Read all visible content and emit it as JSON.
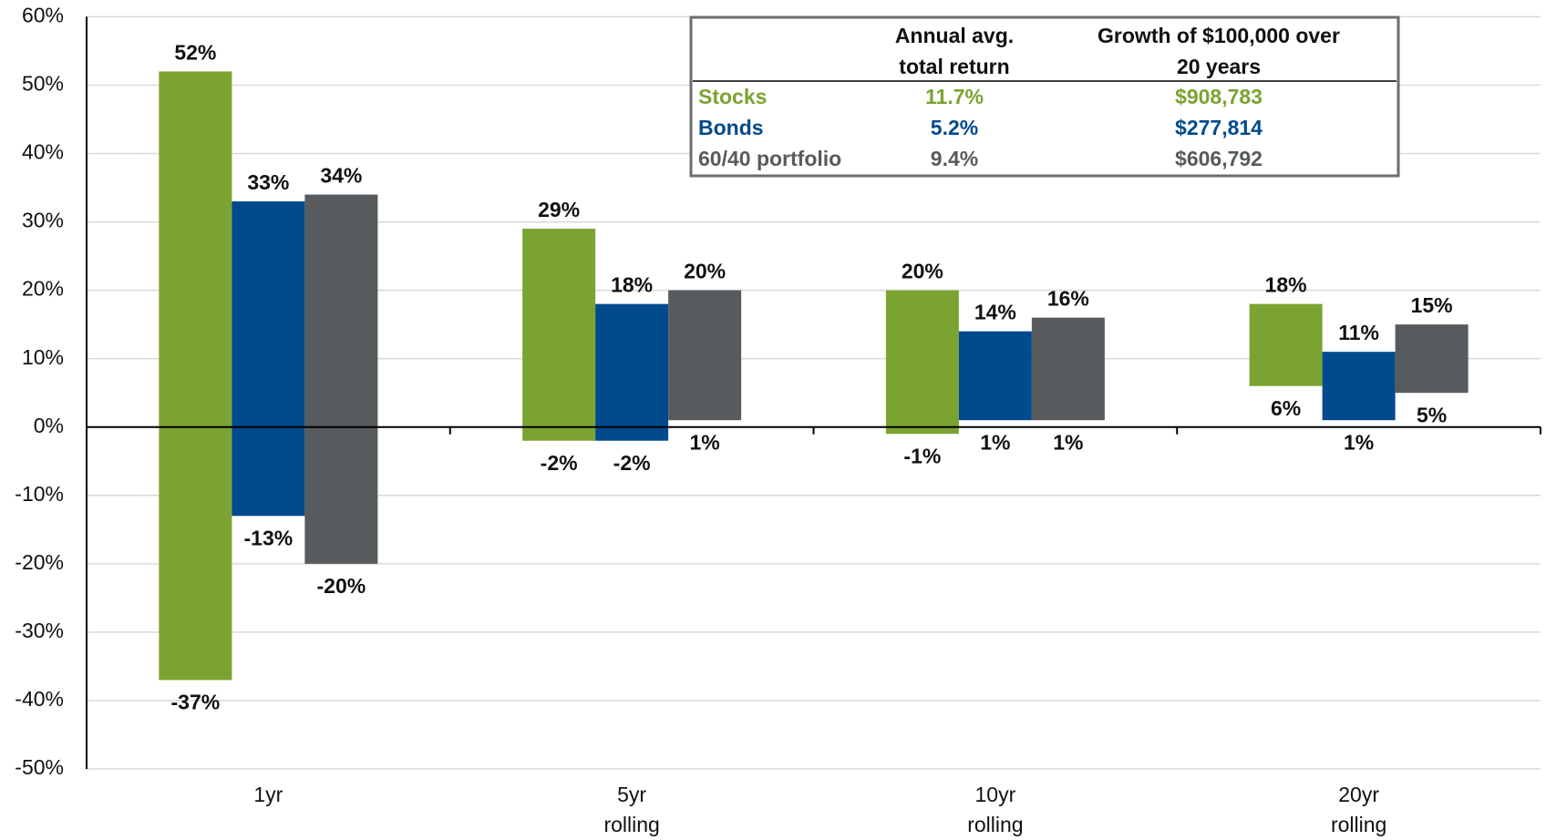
{
  "chart_data": {
    "type": "floating_bar",
    "categories": [
      [
        "1yr"
      ],
      [
        "5yr",
        "rolling"
      ],
      [
        "10yr",
        "rolling"
      ],
      [
        "20yr",
        "rolling"
      ]
    ],
    "series": [
      {
        "name": "Stocks",
        "color": "#7ba331",
        "high": [
          52,
          29,
          20,
          18
        ],
        "high_labels": [
          "52%",
          "29%",
          "20%",
          "18%"
        ],
        "low": [
          -37,
          -2,
          -1,
          6
        ],
        "low_labels": [
          "-37%",
          "-2%",
          "-1%",
          "6%"
        ]
      },
      {
        "name": "Bonds",
        "color": "#004a8d",
        "high": [
          33,
          18,
          14,
          11
        ],
        "high_labels": [
          "33%",
          "18%",
          "14%",
          "11%"
        ],
        "low": [
          -13,
          -2,
          1,
          1
        ],
        "low_labels": [
          "-13%",
          "-2%",
          "1%",
          "1%"
        ]
      },
      {
        "name": "60/40 portfolio",
        "color": "#575b5d",
        "high": [
          34,
          20,
          16,
          15
        ],
        "high_labels": [
          "34%",
          "20%",
          "16%",
          "15%"
        ],
        "low": [
          -20,
          1,
          1,
          5
        ],
        "low_labels": [
          "-20%",
          "1%",
          "1%",
          "5%"
        ]
      }
    ],
    "ylim": [
      -50,
      60
    ],
    "yticks": [
      {
        "value": -50,
        "label": "-50%"
      },
      {
        "value": -40,
        "label": "-40%"
      },
      {
        "value": -30,
        "label": "-30%"
      },
      {
        "value": -20,
        "label": "-20%"
      },
      {
        "value": -10,
        "label": "-10%"
      },
      {
        "value": 0,
        "label": "0%"
      },
      {
        "value": 10,
        "label": "10%"
      },
      {
        "value": 20,
        "label": "20%"
      },
      {
        "value": 30,
        "label": "30%"
      },
      {
        "value": 40,
        "label": "40%"
      },
      {
        "value": 50,
        "label": "50%"
      },
      {
        "value": 60,
        "label": "60%"
      }
    ],
    "grid": true,
    "table": {
      "columns": [
        [
          "Annual avg.",
          "total return"
        ],
        [
          "Growth of $100,000 over",
          "20 years"
        ]
      ],
      "rows": [
        [
          "11.7%",
          "$908,783"
        ],
        [
          "5.2%",
          "$277,814"
        ],
        [
          "9.4%",
          "$606,792"
        ]
      ]
    }
  }
}
